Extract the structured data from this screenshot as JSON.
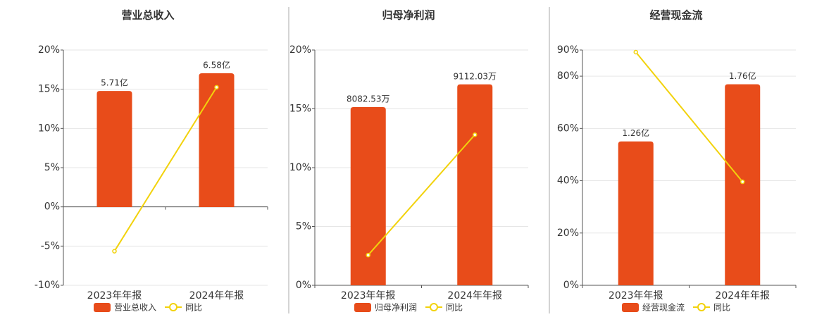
{
  "chart_data": [
    {
      "type": "bar",
      "title": "营业总收入",
      "categories": [
        "2023年年报",
        "2024年年报"
      ],
      "series": [
        {
          "name": "营业总收入",
          "type": "bar",
          "axis": "y2",
          "color": "#e84c1a",
          "values": [
            5.71,
            6.58
          ],
          "value_labels": [
            "5.71亿",
            "6.58亿"
          ]
        },
        {
          "name": "同比",
          "type": "line",
          "color": "#f2d20c",
          "values": [
            -5.65,
            15.25
          ]
        }
      ],
      "ylim": [
        -10,
        20
      ],
      "yticks": [
        {
          "value": 20,
          "label": "20%"
        },
        {
          "value": 15,
          "label": "15%"
        },
        {
          "value": 10,
          "label": "10%"
        },
        {
          "value": 5,
          "label": "5%"
        },
        {
          "value": 0,
          "label": "0%"
        },
        {
          "value": -5,
          "label": "-5%"
        },
        {
          "value": -10,
          "label": "-10%"
        }
      ],
      "y2lim": [
        -3.84,
        7.72
      ],
      "grid": true
    },
    {
      "type": "bar",
      "title": "归母净利润",
      "categories": [
        "2023年年报",
        "2024年年报"
      ],
      "series": [
        {
          "name": "归母净利润",
          "type": "bar",
          "axis": "y2",
          "color": "#e84c1a",
          "values": [
            8082.53,
            9112.03
          ],
          "value_labels": [
            "8082.53万",
            "9112.03万"
          ]
        },
        {
          "name": "同比",
          "type": "line",
          "color": "#f2d20c",
          "values": [
            2.57,
            12.8
          ]
        }
      ],
      "ylim": [
        0,
        20
      ],
      "yticks": [
        {
          "value": 20,
          "label": "20%"
        },
        {
          "value": 15,
          "label": "15%"
        },
        {
          "value": 10,
          "label": "10%"
        },
        {
          "value": 5,
          "label": "5%"
        },
        {
          "value": 0,
          "label": "0%"
        }
      ],
      "y2lim": [
        0,
        10670
      ],
      "grid": true
    },
    {
      "type": "bar",
      "title": "经营现金流",
      "categories": [
        "2023年年报",
        "2024年年报"
      ],
      "series": [
        {
          "name": "经营现金流",
          "type": "bar",
          "axis": "y2",
          "color": "#e84c1a",
          "values": [
            1.26,
            1.76
          ],
          "value_labels": [
            "1.26亿",
            "1.76亿"
          ]
        },
        {
          "name": "同比",
          "type": "line",
          "color": "#f2d20c",
          "values": [
            89.2,
            39.6
          ]
        }
      ],
      "ylim": [
        0,
        90
      ],
      "yticks": [
        {
          "value": 90,
          "label": "90%"
        },
        {
          "value": 80,
          "label": "80%"
        },
        {
          "value": 60,
          "label": "60%"
        },
        {
          "value": 40,
          "label": "40%"
        },
        {
          "value": 20,
          "label": "20%"
        },
        {
          "value": 0,
          "label": "0%"
        }
      ],
      "y2lim": [
        0,
        2.06
      ],
      "grid": true
    }
  ]
}
